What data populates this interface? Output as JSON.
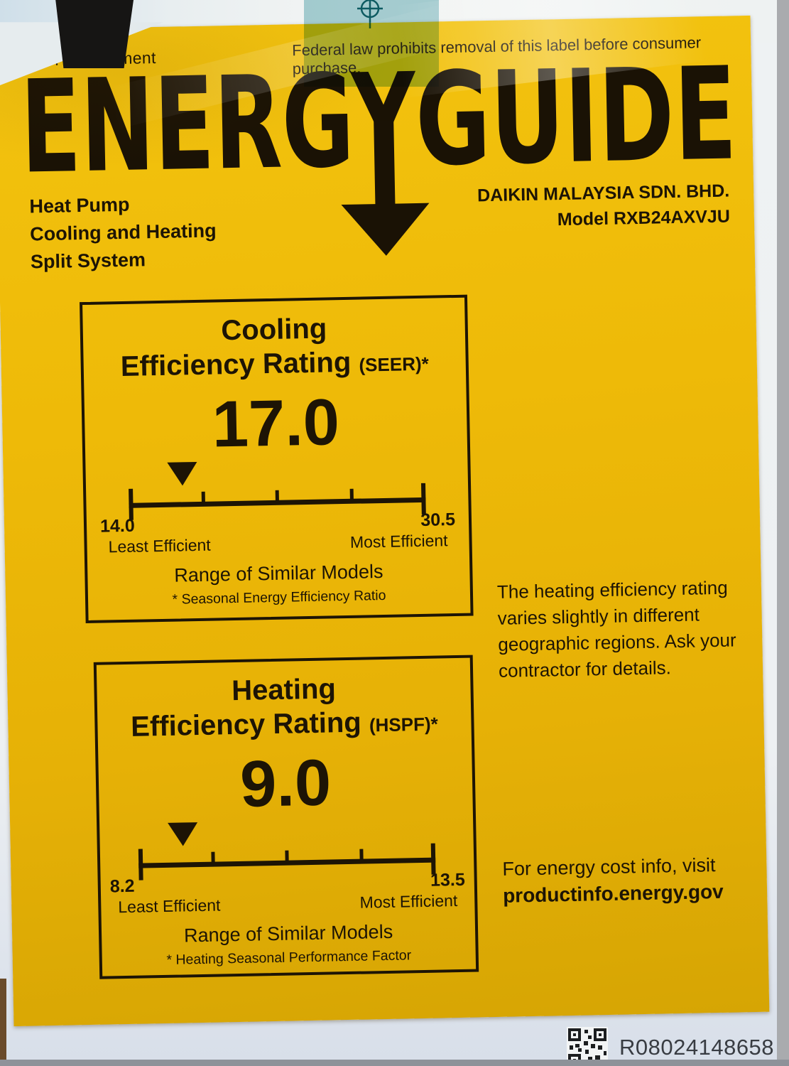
{
  "colors": {
    "label_yellow": "#ecb908",
    "ink": "#1d1405",
    "sticker_teal": "#79b9c1",
    "backing_sheet": "#eef1f3",
    "background_gray": "#a9abae",
    "serial_ink": "#383c42"
  },
  "top_sticker": {
    "notice": "Federal law prohibits removal of this label before consumer purchase.",
    "mark_icon": "registration-mark-icon"
  },
  "label": {
    "government": "U.S. Government",
    "logo": {
      "word1": "ENERGY",
      "word2": "GUIDE",
      "arrow_icon": "down-arrow-icon"
    },
    "product_type": {
      "line1": "Heat Pump",
      "line2": "Cooling and Heating",
      "line3": "Split System"
    },
    "manufacturer": {
      "line1": "DAIKIN MALAYSIA SDN. BHD.",
      "line2": "Model RXB24AXVJU"
    }
  },
  "ratings": [
    {
      "title_line1": "Cooling",
      "title_line2": "Efficiency Rating",
      "acronym": "(SEER)*",
      "value": "17.0",
      "value_num": 17.0,
      "min": 14.0,
      "max": 30.5,
      "min_label": "14.0",
      "max_label": "30.5",
      "least_label": "Least Efficient",
      "most_label": "Most Efficient",
      "range_caption": "Range of Similar Models",
      "footnote": "* Seasonal Energy Efficiency Ratio"
    },
    {
      "title_line1": "Heating",
      "title_line2": "Efficiency Rating",
      "acronym": "(HSPF)*",
      "value": "9.0",
      "value_num": 9.0,
      "min": 8.2,
      "max": 13.5,
      "min_label": "8.2",
      "max_label": "13.5",
      "least_label": "Least Efficient",
      "most_label": "Most Efficient",
      "range_caption": "Range of Similar Models",
      "footnote": "* Heating Seasonal Performance Factor"
    }
  ],
  "notes": {
    "heating_note": "The heating efficiency rating varies slightly in different geographic regions. Ask your contractor for details.",
    "cost_line1": "For energy cost info, visit",
    "cost_line2": "productinfo.energy.gov"
  },
  "footer": {
    "serial": "R08024148658",
    "qr_icon": "qr-code-icon"
  },
  "chart_data": [
    {
      "type": "gauge",
      "title": "Cooling Efficiency Rating (SEER)",
      "value": 17.0,
      "range": [
        14.0,
        30.5
      ],
      "range_label": "Range of Similar Models",
      "min_label": "Least Efficient",
      "max_label": "Most Efficient"
    },
    {
      "type": "gauge",
      "title": "Heating Efficiency Rating (HSPF)",
      "value": 9.0,
      "range": [
        8.2,
        13.5
      ],
      "range_label": "Range of Similar Models",
      "min_label": "Least Efficient",
      "max_label": "Most Efficient"
    }
  ]
}
